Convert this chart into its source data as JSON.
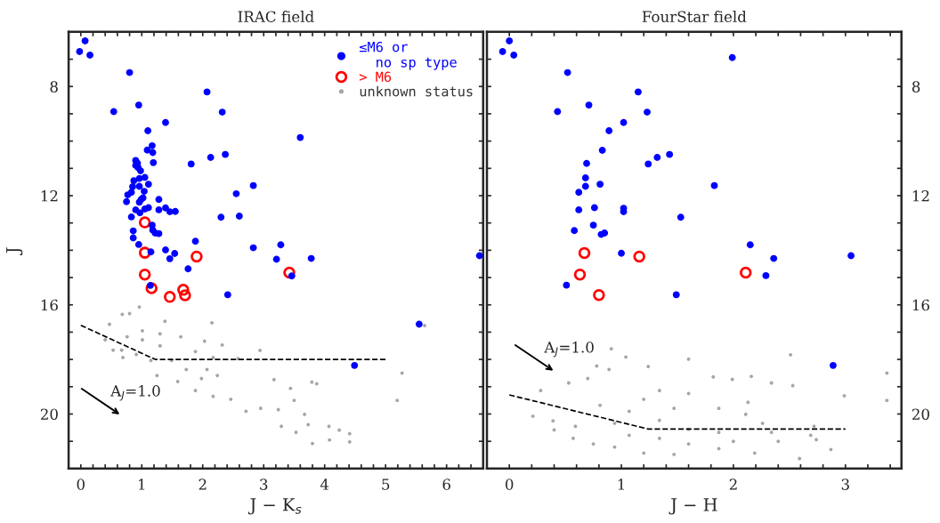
{
  "chart_data": [
    {
      "type": "scatter",
      "title": "IRAC field",
      "xlabel": "J − K$_{s}$",
      "ylabel": "J",
      "legend": "top right",
      "xlim": [
        -0.2,
        6.6
      ],
      "ylim": [
        22,
        6
      ],
      "xticks": [
        0,
        {
          "value": 0.2,
          "label": null
        },
        {
          "value": 0.4,
          "label": null
        },
        {
          "value": 0.6,
          "label": null
        },
        {
          "value": 0.8,
          "label": null
        },
        1,
        {
          "value": 1.2,
          "label": null
        },
        {
          "value": 1.4,
          "label": null
        },
        {
          "value": 1.6,
          "label": null
        },
        {
          "value": 1.8,
          "label": null
        },
        2,
        {
          "value": 2.2,
          "label": null
        },
        {
          "value": 2.4,
          "label": null
        },
        {
          "value": 2.6,
          "label": null
        },
        {
          "value": 2.8,
          "label": null
        },
        3,
        {
          "value": 3.2,
          "label": null
        },
        {
          "value": 3.4,
          "label": null
        },
        {
          "value": 3.6,
          "label": null
        },
        {
          "value": 3.8,
          "label": null
        },
        4,
        {
          "value": 4.2,
          "label": null
        },
        {
          "value": 4.4,
          "label": null
        },
        {
          "value": 4.6,
          "label": null
        },
        {
          "value": 4.8,
          "label": null
        },
        5,
        {
          "value": 5.2,
          "label": null
        },
        {
          "value": 5.4,
          "label": null
        },
        {
          "value": 5.6,
          "label": null
        },
        {
          "value": 5.8,
          "label": null
        },
        6,
        {
          "value": 6.2,
          "label": null
        },
        {
          "value": 6.4,
          "label": null
        }
      ],
      "yticks": [
        {
          "value": 7,
          "label": null
        },
        8,
        {
          "value": 9,
          "label": null
        },
        {
          "value": 10,
          "label": null
        },
        {
          "value": 11,
          "label": null
        },
        12,
        {
          "value": 13,
          "label": null
        },
        {
          "value": 14,
          "label": null
        },
        {
          "value": 15,
          "label": null
        },
        16,
        {
          "value": 17,
          "label": null
        },
        {
          "value": 18,
          "label": null
        },
        {
          "value": 19,
          "label": null
        },
        20,
        {
          "value": 21,
          "label": null
        }
      ],
      "series": [
        {
          "name": "≤M6 or\n  no sp type",
          "color": "#0000ff",
          "marker": "circle",
          "x": [
            0.07,
            -0.02,
            0.15,
            0.8,
            2.07,
            0.95,
            0.54,
            2.32,
            1.39,
            1.1,
            3.6,
            1.17,
            1.09,
            1.18,
            0.9,
            0.93,
            0.9,
            0.94,
            0.98,
            1.19,
            1.81,
            2.13,
            2.37,
            1.05,
            0.96,
            0.87,
            1.11,
            0.85,
            0.96,
            1.04,
            0.83,
            0.77,
            0.75,
            1.02,
            0.99,
            0.96,
            1.28,
            2.55,
            2.83,
            0.9,
            0.97,
            1.05,
            1.11,
            1.28,
            1.39,
            1.46,
            1.55,
            0.83,
            2.3,
            2.6,
            1.17,
            1.18,
            1.22,
            1.28,
            0.86,
            0.86,
            0.95,
            1.88,
            1.15,
            1.39,
            1.54,
            1.46,
            2.83,
            3.28,
            3.21,
            3.78,
            6.54,
            1.76,
            3.46,
            1.14,
            2.41,
            5.55,
            4.49
          ],
          "values": [
            6.33,
            6.72,
            6.85,
            7.49,
            8.2,
            8.68,
            8.92,
            8.94,
            9.32,
            9.62,
            9.87,
            10.17,
            10.33,
            10.42,
            10.71,
            10.81,
            10.89,
            10.97,
            11.09,
            10.79,
            10.84,
            10.6,
            10.49,
            11.33,
            11.37,
            11.45,
            11.58,
            11.67,
            11.66,
            11.84,
            11.88,
            11.97,
            12.22,
            12.08,
            12.14,
            12.24,
            12.14,
            11.93,
            11.63,
            12.52,
            12.63,
            12.49,
            12.44,
            12.52,
            12.45,
            12.59,
            12.58,
            12.78,
            12.79,
            12.75,
            13.08,
            13.26,
            13.37,
            13.39,
            13.29,
            13.55,
            13.79,
            13.67,
            14.06,
            13.99,
            14.12,
            14.31,
            13.91,
            13.8,
            14.33,
            14.3,
            14.2,
            14.68,
            14.94,
            15.29,
            15.63,
            16.71,
            18.22
          ]
        },
        {
          "name": "> M6",
          "color": "#ff0000",
          "marker": "open circle",
          "x": [
            1.05,
            1.05,
            1.9,
            1.05,
            1.16,
            3.42,
            1.68,
            1.71,
            1.46
          ],
          "values": [
            12.98,
            14.09,
            14.23,
            14.89,
            15.39,
            14.82,
            15.45,
            15.65,
            15.71
          ]
        },
        {
          "name": "unknown status",
          "color": "#a6a6a6",
          "marker": "point",
          "x": [
            0.68,
            0.96,
            0.8,
            0.47,
            1.38,
            2.15,
            0.4,
            0.53,
            2.03,
            2.32,
            2.94,
            2.58,
            5.27,
            5.19,
            5.64,
            3.17,
            3.79,
            3.87,
            3.44,
            3.5,
            3.67,
            3.8,
            4.07,
            4.08,
            4.41,
            4.41,
            4.24,
            3.53,
            3.29,
            2.95,
            2.71,
            2.46,
            2.17,
            3.24,
            3.73,
            0.69,
            0.67,
            1.25,
            1.88,
            1.01,
            1.64,
            2.17,
            2.24,
            1.49,
            1.15,
            1.73,
            1.98,
            0.91,
            1.3,
            1.88,
            2.07,
            1.59,
            1.01,
            1.3,
            0.76
          ],
          "values": [
            16.35,
            16.08,
            16.32,
            16.71,
            16.6,
            16.66,
            17.28,
            17.66,
            17.33,
            17.47,
            17.67,
            17.97,
            18.5,
            19.5,
            16.76,
            18.74,
            18.83,
            18.89,
            19.06,
            19.5,
            20.01,
            21.08,
            20.45,
            20.95,
            21.02,
            20.72,
            20.59,
            20.67,
            20.45,
            19.79,
            19.9,
            19.46,
            19.35,
            19.84,
            20.39,
            17.93,
            17.66,
            18.59,
            19.14,
            16.95,
            17.17,
            17.93,
            18.59,
            18.04,
            18.04,
            18.37,
            18.7,
            17.82,
            17.5,
            17.71,
            18.37,
            18.81,
            17.28,
            17.06,
            17.17
          ]
        },
        {
          "type": "line",
          "color": "#000000",
          "line_style": "dashed",
          "x": [
            0,
            1.22,
            5.0
          ],
          "values": [
            16.75,
            18.0,
            18.0
          ]
        }
      ],
      "annotations": [
        "A$_{J}$=1.0"
      ]
    },
    {
      "type": "scatter",
      "title": "FourStar field",
      "xlabel": "J − H",
      "xlim": [
        -0.2,
        3.5
      ],
      "ylim": [
        22,
        6
      ],
      "xticks": [
        0,
        {
          "value": 0.2,
          "label": null
        },
        {
          "value": 0.4,
          "label": null
        },
        {
          "value": 0.6,
          "label": null
        },
        {
          "value": 0.8,
          "label": null
        },
        1,
        {
          "value": 1.2,
          "label": null
        },
        {
          "value": 1.4,
          "label": null
        },
        {
          "value": 1.6,
          "label": null
        },
        {
          "value": 1.8,
          "label": null
        },
        2,
        {
          "value": 2.2,
          "label": null
        },
        {
          "value": 2.4,
          "label": null
        },
        {
          "value": 2.6,
          "label": null
        },
        {
          "value": 2.8,
          "label": null
        },
        3,
        {
          "value": 3.2,
          "label": null
        },
        {
          "value": 3.4,
          "label": null
        }
      ],
      "yticks": [
        {
          "value": 7,
          "label": null
        },
        8,
        {
          "value": 9,
          "label": null
        },
        {
          "value": 10,
          "label": null
        },
        {
          "value": 11,
          "label": null
        },
        12,
        {
          "value": 13,
          "label": null
        },
        {
          "value": 14,
          "label": null
        },
        {
          "value": 15,
          "label": null
        },
        16,
        {
          "value": 17,
          "label": null
        },
        {
          "value": 18,
          "label": null
        },
        {
          "value": 19,
          "label": null
        },
        20,
        {
          "value": 21,
          "label": null
        }
      ],
      "series": [
        {
          "color": "#0000ff",
          "marker": "circle",
          "x": [
            0.0,
            -0.06,
            0.04,
            1.99,
            0.52,
            1.15,
            0.71,
            0.43,
            1.23,
            1.02,
            0.89,
            0.83,
            1.43,
            1.32,
            1.24,
            0.69,
            0.68,
            0.68,
            0.81,
            0.62,
            1.83,
            0.62,
            0.76,
            1.02,
            1.02,
            1.53,
            0.75,
            0.58,
            0.82,
            0.85,
            2.15,
            1.0,
            2.36,
            3.05,
            2.29,
            0.51,
            1.49,
            2.89
          ],
          "values": [
            6.33,
            6.72,
            6.85,
            6.94,
            7.49,
            8.2,
            8.68,
            8.92,
            8.94,
            9.32,
            9.62,
            10.34,
            10.49,
            10.6,
            10.84,
            10.82,
            11.35,
            11.66,
            11.58,
            11.88,
            11.63,
            12.52,
            12.44,
            12.46,
            12.59,
            12.79,
            13.08,
            13.28,
            13.42,
            13.37,
            13.8,
            14.11,
            14.3,
            14.2,
            14.93,
            15.28,
            15.63,
            18.22
          ]
        },
        {
          "color": "#ff0000",
          "marker": "open circle",
          "x": [
            0.67,
            1.16,
            0.63,
            2.11,
            0.8
          ],
          "values": [
            14.1,
            14.23,
            14.89,
            14.82,
            15.64
          ]
        },
        {
          "color": "#a6a6a6",
          "marker": "point",
          "x": [
            0.91,
            1.04,
            1.6,
            1.24,
            0.78,
            2.51,
            3.37,
            3.37,
            2.99,
            2.87,
            2.59,
            2.53,
            2.34,
            2.16,
            1.82,
            1.99,
            0.28,
            0.21,
            0.39,
            0.4,
            0.53,
            0.59,
            0.57,
            0.7,
            0.89,
            1.34,
            1.6,
            1.87,
            2.11,
            2.26,
            2.34,
            2.4,
            2.69,
            2.72,
            2.74,
            2.19,
            1.87,
            1.47,
            1.2,
            0.94,
            0.75,
            0.81,
            1.07,
            0.94,
            1.34,
            1.6,
            1.34,
            1.07,
            1.87,
            2.0,
            1.6,
            2.13,
            1.2,
            1.47
          ],
          "values": [
            17.61,
            17.91,
            17.99,
            18.26,
            18.24,
            17.83,
            18.5,
            19.5,
            19.33,
            21.3,
            21.63,
            18.96,
            18.86,
            18.62,
            18.64,
            18.73,
            19.14,
            20.08,
            20.25,
            20.58,
            18.86,
            20.45,
            20.89,
            18.7,
            18.37,
            19.14,
            19.25,
            19.79,
            20.01,
            20.34,
            20.67,
            21.0,
            20.78,
            20.45,
            20.94,
            21.43,
            21.27,
            21.48,
            21.43,
            21.21,
            21.1,
            19.68,
            19.9,
            20.34,
            20.23,
            20.56,
            20.89,
            20.78,
            20.67,
            21.0,
            21.1,
            19.57,
            19.46,
            19.79
          ]
        },
        {
          "type": "line",
          "color": "#000000",
          "line_style": "dashed",
          "x": [
            0,
            1.24,
            3.0
          ],
          "values": [
            19.3,
            20.55,
            20.55
          ]
        }
      ],
      "annotations": [
        "A$_{J}$=1.0"
      ]
    }
  ]
}
